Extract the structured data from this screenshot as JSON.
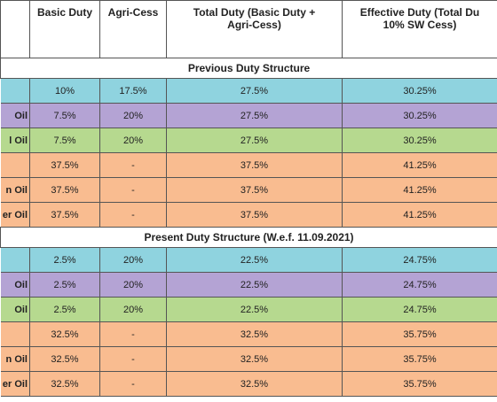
{
  "table": {
    "header": [
      [
        null
      ],
      [
        "Basic Duty"
      ],
      [
        "Agri-Cess"
      ],
      [
        "Total Duty (Basic Duty +",
        "Agri-Cess)"
      ],
      [
        "Effective Duty (Total Du",
        "10% SW Cess)"
      ]
    ],
    "sections": [
      {
        "title": "Previous Duty Structure",
        "rows": [
          {
            "color": "#8fd3df",
            "cells": [
              null,
              "10%",
              "17.5%",
              "27.5%",
              "30.25%"
            ]
          },
          {
            "color": "#b4a3d4",
            "cells": [
              "Oil",
              "7.5%",
              "20%",
              "27.5%",
              "30.25%"
            ]
          },
          {
            "color": "#b6d98f",
            "cells": [
              "l Oil",
              "7.5%",
              "20%",
              "27.5%",
              "30.25%"
            ]
          },
          {
            "color": "#f9bc90",
            "cells": [
              null,
              "37.5%",
              "-",
              "37.5%",
              "41.25%"
            ]
          },
          {
            "color": "#f9bc90",
            "cells": [
              "n Oil",
              "37.5%",
              "-",
              "37.5%",
              "41.25%"
            ]
          },
          {
            "color": "#f9bc90",
            "cells": [
              "er Oil",
              "37.5%",
              "-",
              "37.5%",
              "41.25%"
            ]
          }
        ]
      },
      {
        "title": "Present Duty Structure (W.e.f. 11.09.2021)",
        "rows": [
          {
            "color": "#8fd3df",
            "cells": [
              null,
              "2.5%",
              "20%",
              "22.5%",
              "24.75%"
            ]
          },
          {
            "color": "#b4a3d4",
            "cells": [
              "Oil",
              "2.5%",
              "20%",
              "22.5%",
              "24.75%"
            ]
          },
          {
            "color": "#b6d98f",
            "cells": [
              "Oil",
              "2.5%",
              "20%",
              "22.5%",
              "24.75%"
            ]
          },
          {
            "color": "#f9bc90",
            "cells": [
              null,
              "32.5%",
              "-",
              "32.5%",
              "35.75%"
            ]
          },
          {
            "color": "#f9bc90",
            "cells": [
              "n Oil",
              "32.5%",
              "-",
              "32.5%",
              "35.75%"
            ]
          },
          {
            "color": "#f9bc90",
            "cells": [
              "er Oil",
              "32.5%",
              "-",
              "32.5%",
              "35.75%"
            ]
          }
        ]
      }
    ]
  }
}
